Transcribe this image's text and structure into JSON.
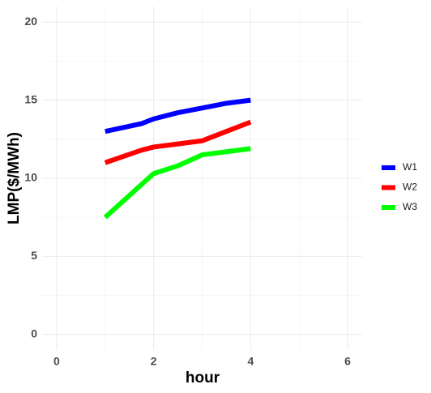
{
  "chart_data": {
    "type": "line",
    "x_label": "hour",
    "y_label": "LMP($/MWh)",
    "x": [
      1,
      1.75,
      2,
      2.5,
      3,
      3.5,
      4
    ],
    "series": [
      {
        "name": "W1",
        "color": "#0000ff",
        "values": [
          13.0,
          13.5,
          13.8,
          14.2,
          14.5,
          14.8,
          15.0
        ]
      },
      {
        "name": "W2",
        "color": "#ff0000",
        "values": [
          11.0,
          11.8,
          12.0,
          12.2,
          12.4,
          13.0,
          13.6
        ]
      },
      {
        "name": "W3",
        "color": "#00ff00",
        "values": [
          7.5,
          9.6,
          10.3,
          10.8,
          11.5,
          11.7,
          11.9
        ]
      }
    ],
    "xlim": [
      -0.3,
      6.3
    ],
    "xticks": [
      0,
      2,
      4,
      6
    ],
    "ylim": [
      -1,
      21
    ],
    "yticks": [
      0,
      5,
      10,
      15,
      20
    ],
    "grid": true,
    "legend": "right"
  }
}
